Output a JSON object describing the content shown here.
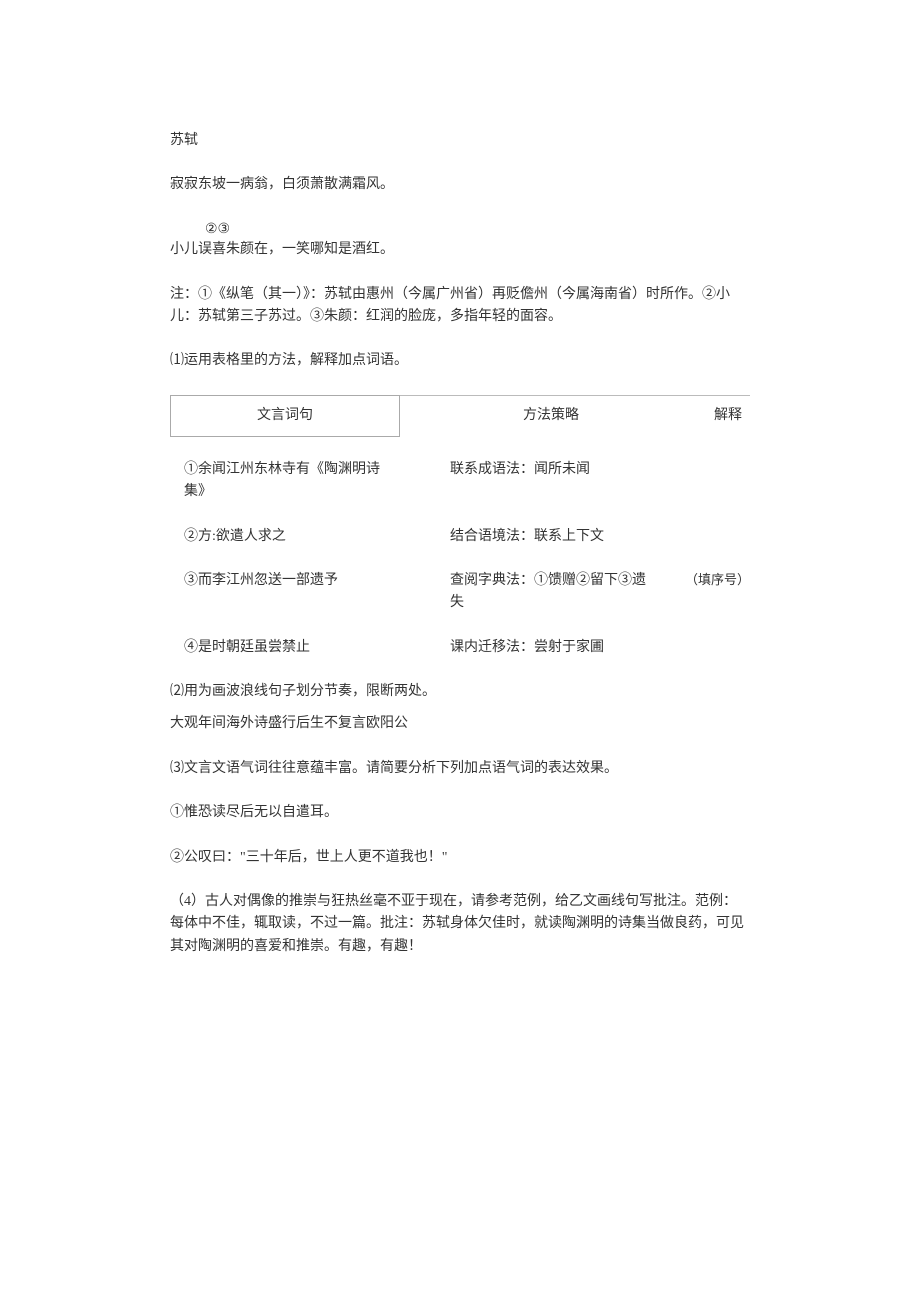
{
  "author": "苏轼",
  "poem_line1": "寂寂东坡一病翁，白须萧散满霜风。",
  "poem_sup": "②③",
  "poem_line2": "小儿误喜朱颜在，一笑哪知是酒红。",
  "note_para": "注：①《纵笔（其一）》：苏轼由惠州（今属广州省）再贬儋州（今属海南省）时所作。②小儿：苏轼第三子苏过。③朱颜：红润的脸庞，多指年轻的面容。",
  "q1_stem": "⑴运用表格里的方法，解释加点词语。",
  "table": {
    "headers": {
      "term": "文言词句",
      "method": "方法策略",
      "explain": "解释"
    },
    "rows": [
      {
        "term": "①余闻江州东林寺有《陶渊明诗集》",
        "method": "联系成语法：闻所未闻",
        "note": ""
      },
      {
        "term": "②方:欲遣人求之",
        "method": "结合语境法：联系上下文",
        "note": ""
      },
      {
        "term": "③而李江州忽送一部遗予",
        "method": "查阅字典法：①馈赠②留下③遗失",
        "note": "（填序号）"
      },
      {
        "term": "④是时朝廷虽尝禁止",
        "method": "课内迁移法：尝射于家圃",
        "note": ""
      }
    ]
  },
  "q2_stem": "⑵用为画波浪线句子划分节奏，限断两处。",
  "q2_text": "大观年间海外诗盛行后生不复言欧阳公",
  "q3_stem": "⑶文言文语气词往往意蕴丰富。请简要分析下列加点语气词的表达效果。",
  "q3_item1": "①惟恐读尽后无以自遣耳。",
  "q3_item2": "②公叹曰：\"三十年后，世上人更不道我也！\"",
  "q4_text": "（4）古人对偶像的推崇与狂热丝毫不亚于现在，请参考范例，给乙文画线句写批注。范例：每体中不佳，辄取读，不过一篇。批注：苏轼身体欠佳时，就读陶渊明的诗集当做良药，可见其对陶渊明的喜爱和推崇。有趣，有趣！"
}
